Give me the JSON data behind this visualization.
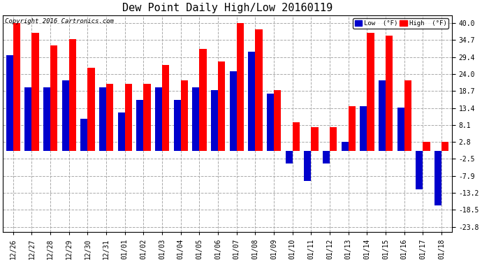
{
  "title": "Dew Point Daily High/Low 20160119",
  "copyright": "Copyright 2016 Cartronics.com",
  "dates": [
    "12/26",
    "12/27",
    "12/28",
    "12/29",
    "12/30",
    "12/31",
    "01/01",
    "01/02",
    "01/03",
    "01/04",
    "01/05",
    "01/06",
    "01/07",
    "01/08",
    "01/09",
    "01/10",
    "01/11",
    "01/12",
    "01/13",
    "01/14",
    "01/15",
    "01/16",
    "01/17",
    "01/18"
  ],
  "high": [
    40.0,
    37.0,
    33.0,
    35.0,
    26.0,
    21.0,
    21.0,
    21.0,
    27.0,
    22.0,
    32.0,
    28.0,
    40.0,
    38.0,
    19.0,
    9.0,
    7.5,
    7.5,
    14.0,
    37.0,
    36.0,
    22.0,
    2.8,
    2.8
  ],
  "low": [
    30.0,
    20.0,
    20.0,
    22.0,
    10.0,
    20.0,
    12.0,
    16.0,
    20.0,
    16.0,
    20.0,
    19.0,
    25.0,
    31.0,
    18.0,
    -4.0,
    -9.5,
    -4.0,
    2.8,
    14.0,
    22.0,
    13.5,
    -12.0,
    -17.0
  ],
  "yticks": [
    40.0,
    34.7,
    29.4,
    24.0,
    18.7,
    13.4,
    8.1,
    2.8,
    -2.5,
    -7.9,
    -13.2,
    -18.5,
    -23.8
  ],
  "ylim": [
    -25.5,
    42.5
  ],
  "bar_width": 0.38,
  "high_color": "#ff0000",
  "low_color": "#0000cc",
  "bg_color": "#ffffff",
  "grid_color": "#aaaaaa",
  "title_fontsize": 11,
  "tick_fontsize": 7,
  "copyright_fontsize": 6.5
}
